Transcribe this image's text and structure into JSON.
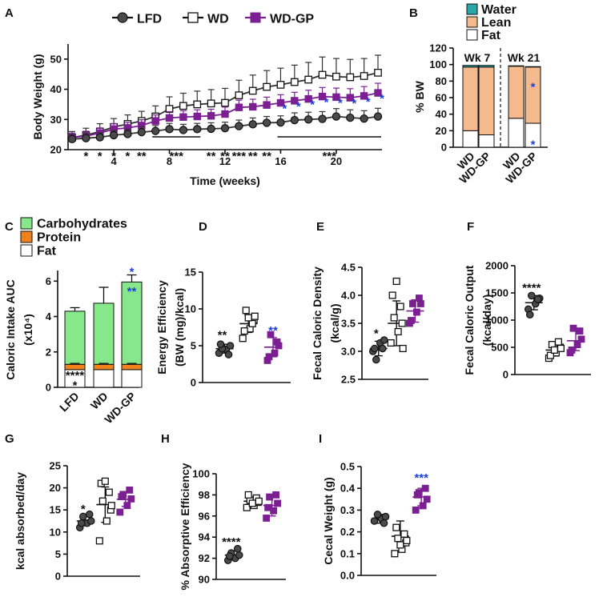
{
  "colors": {
    "lfd": "#4a4a4a",
    "wd": "#ffffff",
    "wdgp": "#7b1f93",
    "sig_blue": "#1e3fd8",
    "water": "#2aa7a9",
    "lean": "#f4b98c",
    "fat": "#ffffff",
    "carbs": "#86e88a",
    "protein": "#f0821e"
  },
  "groups": [
    "LFD",
    "WD",
    "WD-GP"
  ],
  "chart_data": [
    {
      "id": "A",
      "panel_label": "A",
      "type": "line",
      "xlabel": "Time (weeks)",
      "ylabel": "Body Weight (g)",
      "xlim": [
        1,
        23
      ],
      "ylim": [
        20,
        55
      ],
      "xticks": [
        {
          "v": 4,
          "t": "4"
        },
        {
          "v": 8,
          "t": "8"
        },
        {
          "v": 12,
          "t": "12"
        },
        {
          "v": 16,
          "t": "16"
        },
        {
          "v": 20,
          "t": "20"
        }
      ],
      "yticks": [
        {
          "v": 20,
          "t": "20"
        },
        {
          "v": 30,
          "t": "30"
        },
        {
          "v": 40,
          "t": "40"
        },
        {
          "v": 50,
          "t": "50"
        }
      ],
      "legend": [
        "LFD",
        "WD",
        "WD-GP"
      ],
      "x": [
        1,
        2,
        3,
        4,
        5,
        6,
        7,
        8,
        9,
        10,
        11,
        12,
        13,
        14,
        15,
        16,
        17,
        18,
        19,
        20,
        21,
        22,
        23
      ],
      "series": [
        {
          "name": "LFD",
          "values": [
            23.5,
            23.8,
            24.1,
            24.8,
            25.2,
            25.8,
            26.2,
            26.8,
            26.5,
            26.8,
            26.9,
            27.1,
            27.8,
            28.4,
            28.9,
            29.0,
            29.8,
            30.0,
            30.2,
            31.0,
            30.6,
            30.3,
            31.0
          ],
          "err": [
            1.5,
            1.5,
            1.5,
            1.6,
            1.6,
            1.8,
            1.8,
            1.9,
            1.9,
            1.9,
            2,
            2,
            2,
            2.1,
            2.1,
            2.2,
            2.4,
            2.4,
            2.4,
            2.6,
            2.6,
            2.6,
            2.7
          ]
        },
        {
          "name": "WD",
          "values": [
            24.0,
            24.8,
            26.0,
            27.5,
            28.5,
            29.5,
            31.0,
            33.5,
            34.5,
            35.0,
            35.3,
            35.5,
            38.0,
            39.5,
            40.8,
            41.5,
            42.4,
            43.2,
            44.8,
            44.2,
            44.0,
            44.4,
            45.5
          ],
          "err": [
            2,
            2.3,
            2.6,
            2.8,
            3,
            3.2,
            3.5,
            4,
            4.2,
            4.4,
            4.6,
            4.8,
            5,
            5.2,
            5.4,
            5.5,
            5.6,
            5.7,
            5.9,
            6,
            5.9,
            5.8,
            5.8
          ]
        },
        {
          "name": "WD-GP",
          "values": [
            24.0,
            24.5,
            25.5,
            26.8,
            27.2,
            28.0,
            29.5,
            30.5,
            30.8,
            31.0,
            31.2,
            31.8,
            34.0,
            34.2,
            34.8,
            35.5,
            36.2,
            36.8,
            37.6,
            37.4,
            37.2,
            37.8,
            38.8
          ],
          "err": [
            1.5,
            1.6,
            1.7,
            1.8,
            1.8,
            1.9,
            2,
            2.1,
            2.1,
            2.2,
            2.2,
            2.3,
            2.4,
            2.5,
            2.6,
            2.7,
            2.8,
            2.9,
            3,
            3,
            3,
            3.1,
            3.2
          ]
        }
      ],
      "black_sig": [
        {
          "x": 2,
          "t": "*"
        },
        {
          "x": 3,
          "t": "*"
        },
        {
          "x": 4,
          "t": "*"
        },
        {
          "x": 5,
          "t": "*"
        },
        {
          "x": 6,
          "t": "**"
        },
        {
          "x": 8.5,
          "t": "***"
        },
        {
          "x": 11,
          "t": "**"
        },
        {
          "x": 12,
          "t": "**"
        },
        {
          "x": 13,
          "t": "***"
        },
        {
          "x": 14,
          "t": "**"
        },
        {
          "x": 15,
          "t": "**"
        },
        {
          "x": 19.5,
          "t": "***"
        }
      ],
      "sig_lines": [
        [
          7,
          10
        ],
        [
          16,
          23
        ]
      ],
      "blue_sig_x": [
        16,
        17,
        18,
        19,
        20,
        21,
        22,
        23
      ]
    },
    {
      "id": "B",
      "panel_label": "B",
      "type": "bar",
      "stacked": true,
      "ylabel": "% BW",
      "ylim": [
        0,
        120
      ],
      "yticks": [
        {
          "v": 0,
          "t": "0"
        },
        {
          "v": 20,
          "t": "20"
        },
        {
          "v": 40,
          "t": "40"
        },
        {
          "v": 60,
          "t": "60"
        },
        {
          "v": 80,
          "t": "80"
        },
        {
          "v": 100,
          "t": "100"
        },
        {
          "v": 120,
          "t": "120"
        }
      ],
      "legend": [
        "Water",
        "Lean",
        "Fat"
      ],
      "categories": [
        "WD",
        "WD-GP",
        "WD",
        "WD-GP"
      ],
      "group_labels": [
        "Wk 7",
        "Wk 21"
      ],
      "series": [
        {
          "name": "Fat",
          "values": [
            20,
            15,
            35,
            29
          ]
        },
        {
          "name": "Lean",
          "values": [
            77,
            82,
            63,
            68
          ]
        },
        {
          "name": "Water",
          "values": [
            2,
            2,
            0.5,
            0.5
          ]
        }
      ],
      "sig": [
        {
          "bar": 3,
          "y": 78,
          "t": "*"
        },
        {
          "bar": 3,
          "y": 8,
          "t": "*"
        }
      ]
    },
    {
      "id": "C",
      "panel_label": "C",
      "type": "bar",
      "stacked": true,
      "ylabel": "Caloric Intake AUC",
      "ylabel2": "(x10⁴)",
      "ylim": [
        0,
        6.6
      ],
      "yticks": [
        {
          "v": 0,
          "t": "0"
        },
        {
          "v": 2,
          "t": "2"
        },
        {
          "v": 4,
          "t": "4"
        },
        {
          "v": 6,
          "t": "6"
        }
      ],
      "legend": [
        "Carbohydrates",
        "Protein",
        "Fat"
      ],
      "categories": [
        "LFD",
        "WD",
        "WD-GP"
      ],
      "series": [
        {
          "name": "Fat",
          "values": [
            1.0,
            1.0,
            1.0
          ]
        },
        {
          "name": "Protein",
          "values": [
            0.3,
            0.3,
            0.3
          ]
        },
        {
          "name": "Carbohydrates",
          "values": [
            3.0,
            3.45,
            4.65
          ]
        }
      ],
      "err": [
        0.2,
        0.9,
        0.4
      ],
      "sig": [
        {
          "t": "****",
          "cat": 0,
          "y": 0.9,
          "color": "black"
        },
        {
          "t": "*",
          "cat": 0,
          "y": 0.35,
          "color": "black"
        },
        {
          "t": "*",
          "cat": 2,
          "y": 6.75,
          "color": "blue"
        },
        {
          "t": "**",
          "cat": 2,
          "y": 5.65,
          "color": "blue"
        }
      ]
    },
    {
      "id": "D",
      "panel_label": "D",
      "type": "scatter",
      "ylabel": "Energy Efficiency",
      "ylabel2": "(BW (mg)/kcal)",
      "ylim": [
        0,
        15
      ],
      "yticks": [
        {
          "v": 0,
          "t": "0"
        },
        {
          "v": 5,
          "t": "5"
        },
        {
          "v": 10,
          "t": "10"
        },
        {
          "v": 15,
          "t": "15"
        }
      ],
      "groups": [
        {
          "name": "LFD",
          "values": [
            4.0,
            4.5,
            5.0,
            4.6,
            3.8,
            5.2
          ],
          "mean": 4.6,
          "sd": 0.6
        },
        {
          "name": "WD",
          "values": [
            6.0,
            7.3,
            8.5,
            9.8,
            8.0,
            7.0,
            8.8,
            9.0
          ],
          "mean": 8.0,
          "sd": 1.2
        },
        {
          "name": "WD-GP",
          "values": [
            3.0,
            4.0,
            5.0,
            6.5,
            5.5,
            3.5
          ],
          "mean": 4.8,
          "sd": 1.3
        }
      ],
      "sig": [
        {
          "t": "**",
          "g": 0,
          "y": 5.9,
          "color": "black"
        },
        {
          "t": "**",
          "g": 2,
          "y": 6.5,
          "color": "blue"
        }
      ]
    },
    {
      "id": "E",
      "panel_label": "E",
      "type": "scatter",
      "ylabel": "Fecal Caloric Density",
      "ylabel2": "(kcal/g)",
      "ylim": [
        2.5,
        4.5
      ],
      "yticks": [
        {
          "v": 2.5,
          "t": "2.5"
        },
        {
          "v": 3.0,
          "t": "3.0"
        },
        {
          "v": 3.5,
          "t": "3.5"
        },
        {
          "v": 4.0,
          "t": "4.0"
        },
        {
          "v": 4.5,
          "t": "4.5"
        }
      ],
      "groups": [
        {
          "name": "LFD",
          "values": [
            3.0,
            3.15,
            3.2,
            2.85,
            3.05,
            3.05
          ],
          "mean": 3.05,
          "sd": 0.13
        },
        {
          "name": "WD",
          "values": [
            3.15,
            3.35,
            3.5,
            3.6,
            3.8,
            4.0,
            4.25,
            3.05
          ],
          "mean": 3.5,
          "sd": 0.4
        },
        {
          "name": "WD-GP",
          "values": [
            3.5,
            3.7,
            3.85,
            3.85,
            3.95,
            3.55
          ],
          "mean": 3.72,
          "sd": 0.2
        }
      ],
      "sig": [
        {
          "t": "*",
          "g": 0,
          "y": 3.25,
          "color": "black"
        }
      ]
    },
    {
      "id": "F",
      "panel_label": "F",
      "type": "scatter",
      "ylabel": "Fecal Caloric Output",
      "ylabel2": "(kcal/day)",
      "ylim": [
        0,
        2000
      ],
      "yticks": [
        {
          "v": 0,
          "t": "0"
        },
        {
          "v": 500,
          "t": "500"
        },
        {
          "v": 1000,
          "t": "1000"
        },
        {
          "v": 1500,
          "t": "1500"
        },
        {
          "v": 2000,
          "t": "2000"
        }
      ],
      "groups": [
        {
          "name": "LFD",
          "values": [
            1200,
            1300,
            1400,
            1450,
            1380,
            1100
          ],
          "mean": 1320,
          "sd": 130
        },
        {
          "name": "WD",
          "values": [
            300,
            400,
            500,
            550,
            600,
            350,
            450,
            480
          ],
          "mean": 450,
          "sd": 110
        },
        {
          "name": "WD-GP",
          "values": [
            400,
            550,
            650,
            850,
            800,
            450
          ],
          "mean": 620,
          "sd": 180
        }
      ],
      "sig": [
        {
          "t": "****",
          "g": 0,
          "y": 1520,
          "color": "black"
        }
      ]
    },
    {
      "id": "G",
      "panel_label": "G",
      "type": "scatter",
      "ylabel": "kcal absorbed/day",
      "ylabel2": "",
      "ylim": [
        0,
        25
      ],
      "yticks": [
        {
          "v": 0,
          "t": "0"
        },
        {
          "v": 5,
          "t": "5"
        },
        {
          "v": 10,
          "t": "10"
        },
        {
          "v": 15,
          "t": "15"
        },
        {
          "v": 20,
          "t": "20"
        },
        {
          "v": 25,
          "t": "25"
        }
      ],
      "groups": [
        {
          "name": "LFD",
          "values": [
            11.0,
            12.0,
            12.5,
            13.5,
            14.0,
            12.0
          ],
          "mean": 12.5,
          "sd": 1.1
        },
        {
          "name": "WD",
          "values": [
            8.0,
            12.5,
            15.0,
            17.0,
            19.0,
            21.0,
            21.5,
            16.0
          ],
          "mean": 16.2,
          "sd": 4.0
        },
        {
          "name": "WD-GP",
          "values": [
            14.5,
            16.0,
            17.5,
            18.5,
            19.5,
            18.0
          ],
          "mean": 17.4,
          "sd": 1.6
        }
      ],
      "sig": [
        {
          "t": "*",
          "g": 0,
          "y": 14.3,
          "color": "black"
        }
      ]
    },
    {
      "id": "H",
      "panel_label": "H",
      "type": "scatter",
      "ylabel": "% Absorptive Efficiency",
      "ylabel2": "",
      "ylim": [
        90,
        100
      ],
      "yticks": [
        {
          "v": 90,
          "t": "90"
        },
        {
          "v": 92,
          "t": "92"
        },
        {
          "v": 94,
          "t": "94"
        },
        {
          "v": 96,
          "t": "96"
        },
        {
          "v": 98,
          "t": "98"
        },
        {
          "v": 100,
          "t": "100"
        }
      ],
      "groups": [
        {
          "name": "LFD",
          "values": [
            91.8,
            92.0,
            92.3,
            92.5,
            92.9,
            92.2
          ],
          "mean": 92.3,
          "sd": 0.4
        },
        {
          "name": "WD",
          "values": [
            96.8,
            97.0,
            97.3,
            97.5,
            97.7,
            98.0,
            97.2,
            97.4
          ],
          "mean": 97.4,
          "sd": 0.4
        },
        {
          "name": "WD-GP",
          "values": [
            95.8,
            96.5,
            97.2,
            97.8,
            98.0,
            96.8
          ],
          "mean": 97.0,
          "sd": 1.0
        }
      ],
      "sig": [
        {
          "t": "****",
          "g": 0,
          "y": 93.2,
          "color": "black"
        }
      ]
    },
    {
      "id": "I",
      "panel_label": "I",
      "type": "scatter",
      "ylabel": "Cecal Weight (g)",
      "ylabel2": "",
      "ylim": [
        0,
        0.5
      ],
      "yticks": [
        {
          "v": 0,
          "t": "0.0"
        },
        {
          "v": 0.1,
          "t": "0.1"
        },
        {
          "v": 0.2,
          "t": "0.2"
        },
        {
          "v": 0.3,
          "t": "0.3"
        },
        {
          "v": 0.4,
          "t": "0.4"
        },
        {
          "v": 0.5,
          "t": "0.5"
        }
      ],
      "groups": [
        {
          "name": "LFD",
          "values": [
            0.25,
            0.26,
            0.27,
            0.28,
            0.24
          ],
          "mean": 0.26,
          "sd": 0.02
        },
        {
          "name": "WD",
          "values": [
            0.1,
            0.12,
            0.15,
            0.17,
            0.19,
            0.22,
            0.14,
            0.16
          ],
          "mean": 0.18,
          "sd": 0.07
        },
        {
          "name": "WD-GP",
          "values": [
            0.3,
            0.32,
            0.35,
            0.38,
            0.4,
            0.37
          ],
          "mean": 0.36,
          "sd": 0.04
        }
      ],
      "sig": [
        {
          "t": "***",
          "g": 2,
          "y": 0.43,
          "color": "blue"
        }
      ]
    }
  ]
}
